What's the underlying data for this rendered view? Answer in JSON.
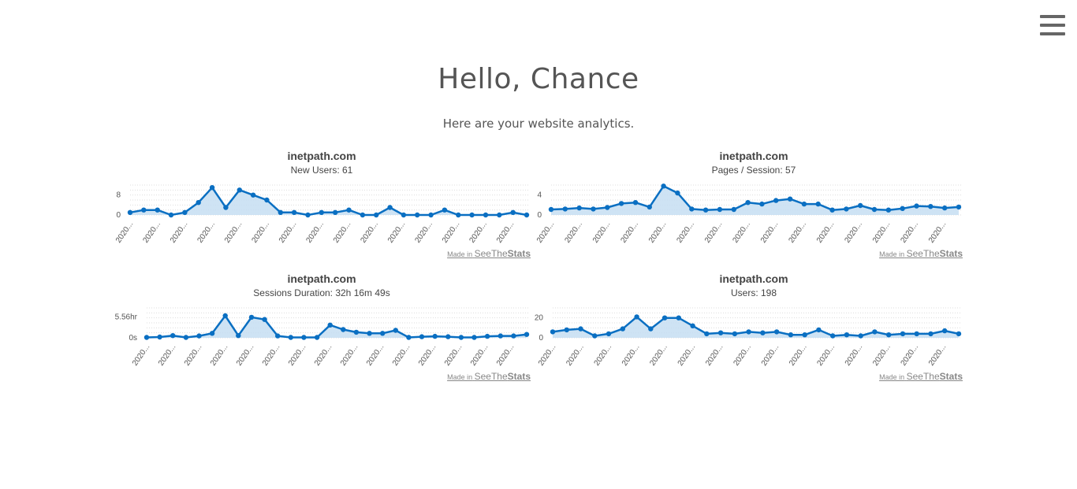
{
  "page": {
    "greeting": "Hello, Chance",
    "subtitle": "Here are your website analytics."
  },
  "menu": {
    "icon": "hamburger-menu-icon"
  },
  "colors": {
    "line": "#0a6fc2",
    "fill": "#c6def2",
    "grid": "#dddddd"
  },
  "charts": [
    {
      "site": "inetpath.com",
      "metric": "New Users: 61",
      "made_in": "Made in",
      "brand_see": "SeeThe",
      "brand_stats": "Stats"
    },
    {
      "site": "inetpath.com",
      "metric": "Pages / Session: 57",
      "made_in": "Made in",
      "brand_see": "SeeThe",
      "brand_stats": "Stats"
    },
    {
      "site": "inetpath.com",
      "metric": "Sessions Duration: 32h 16m 49s",
      "made_in": "Made in",
      "brand_see": "SeeThe",
      "brand_stats": "Stats"
    },
    {
      "site": "inetpath.com",
      "metric": "Users: 198",
      "made_in": "Made in",
      "brand_see": "SeeThe",
      "brand_stats": "Stats"
    }
  ],
  "chart_data": [
    {
      "type": "area",
      "title": "inetpath.com",
      "subtitle": "New Users: 61",
      "yticks": [
        "0",
        "8"
      ],
      "ytick_values": [
        0,
        8
      ],
      "ylim": [
        0,
        12
      ],
      "xtick_label": "2020...",
      "xtick_count": 15,
      "values": [
        1,
        2,
        2,
        0,
        1,
        5,
        11,
        3,
        10,
        8,
        6,
        1,
        1,
        0,
        1,
        1,
        2,
        0,
        0,
        3,
        0,
        0,
        0,
        2,
        0,
        0,
        0,
        0,
        1,
        0
      ]
    },
    {
      "type": "area",
      "title": "inetpath.com",
      "subtitle": "Pages / Session: 57",
      "yticks": [
        "0",
        "4"
      ],
      "ytick_values": [
        0,
        4
      ],
      "ylim": [
        0,
        6
      ],
      "xtick_label": "2020...",
      "xtick_count": 15,
      "values": [
        1.1,
        1.2,
        1.4,
        1.2,
        1.5,
        2.3,
        2.5,
        1.6,
        5.8,
        4.4,
        1.2,
        1.0,
        1.1,
        1.1,
        2.5,
        2.2,
        2.9,
        3.2,
        2.2,
        2.2,
        1.0,
        1.2,
        1.9,
        1.1,
        1.0,
        1.3,
        1.8,
        1.7,
        1.4,
        1.6
      ]
    },
    {
      "type": "area",
      "title": "inetpath.com",
      "subtitle": "Sessions Duration: 32h 16m 49s",
      "yticks": [
        "0s",
        "5.56hr"
      ],
      "ytick_values": [
        0,
        5.56
      ],
      "ylim": [
        0,
        8
      ],
      "xtick_label": "2020...",
      "xtick_count": 15,
      "values": [
        0.1,
        0.2,
        0.6,
        0.1,
        0.5,
        1.2,
        5.9,
        0.6,
        5.5,
        4.9,
        0.5,
        0.1,
        0.1,
        0.1,
        3.4,
        2.2,
        1.5,
        1.2,
        1.2,
        2.0,
        0.1,
        0.3,
        0.4,
        0.3,
        0.1,
        0.1,
        0.4,
        0.5,
        0.5,
        0.9
      ]
    },
    {
      "type": "area",
      "title": "inetpath.com",
      "subtitle": "Users: 198",
      "yticks": [
        "0",
        "20"
      ],
      "ytick_values": [
        0,
        20
      ],
      "ylim": [
        0,
        30
      ],
      "xtick_label": "2020...",
      "xtick_count": 15,
      "values": [
        6,
        8,
        9,
        2,
        4,
        9,
        21,
        9,
        20,
        20,
        12,
        4,
        5,
        4,
        6,
        5,
        6,
        3,
        3,
        8,
        2,
        3,
        2,
        6,
        3,
        4,
        4,
        4,
        7,
        4
      ]
    }
  ]
}
